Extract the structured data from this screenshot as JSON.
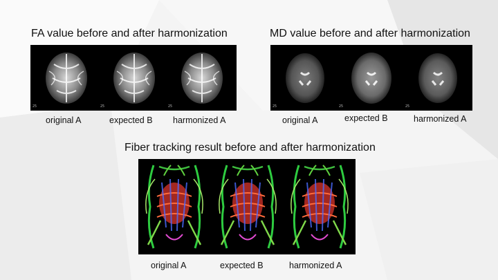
{
  "fa": {
    "title": "FA value before and after harmonization",
    "captions": [
      "original A",
      "expected B",
      "harmonized A"
    ],
    "slice_labels": [
      "25",
      "25",
      "25"
    ]
  },
  "md": {
    "title": "MD value before and after harmonization",
    "captions": [
      "original A",
      "expected B",
      "harmonized A"
    ],
    "slice_labels": [
      "25",
      "25",
      "25"
    ]
  },
  "fiber": {
    "title": "Fiber tracking result before and after harmonization",
    "captions": [
      "original A",
      "expected B",
      "harmonized A"
    ]
  }
}
